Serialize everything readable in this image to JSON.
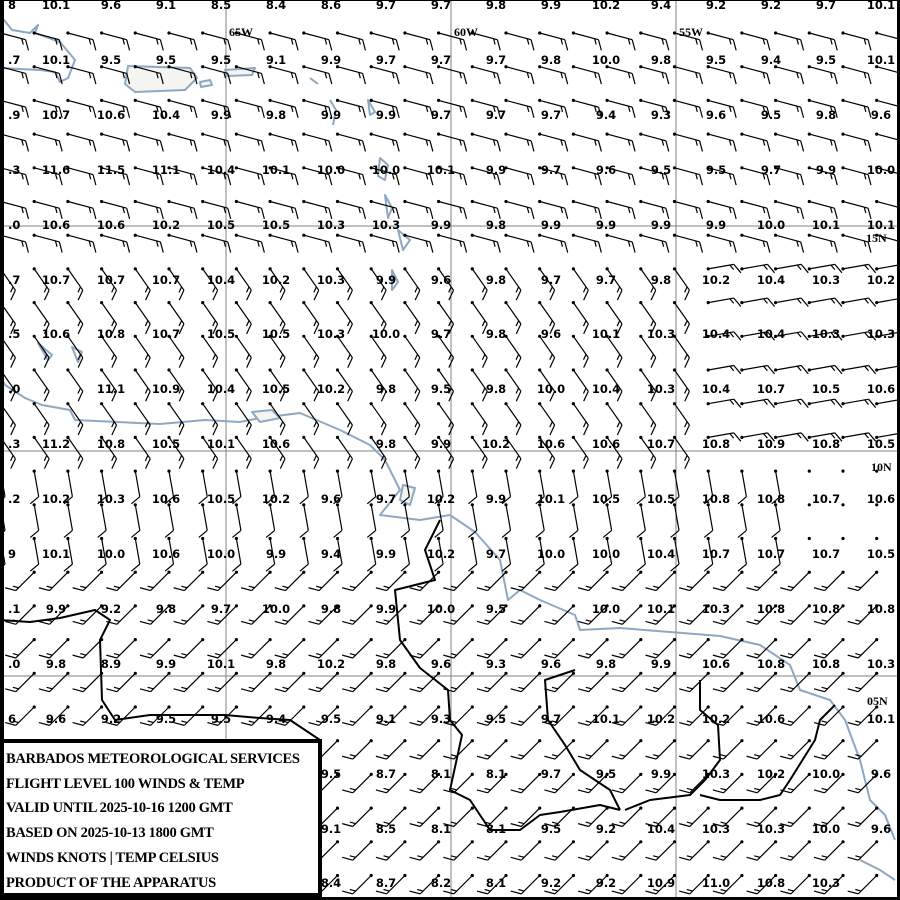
{
  "legend": {
    "lines": [
      "BARBADOS METEOROLOGICAL SERVICES",
      "FLIGHT LEVEL 100 WINDS & TEMP",
      "VALID UNTIL 2025-10-16 1200 GMT",
      "BASED ON 2025-10-13 1800 GMT",
      "WINDS KNOTS | TEMP CELSIUS",
      "PRODUCT OF THE APPARATUS"
    ]
  },
  "longitude_labels": [
    "65W",
    "60W",
    "55W"
  ],
  "latitude_labels": [
    "15N",
    "10N",
    "05N"
  ],
  "colors": {
    "grid_label": "#ff0000",
    "gridline": "#808080",
    "coastline": "#8fa7c0",
    "border": "#000000",
    "wind_barb": "#000000"
  },
  "temperatures_celsius": [
    [
      "10.1",
      "9.6",
      "9.1",
      "8.5",
      "8.4",
      "8.6",
      "9.7",
      "9.7",
      "9.8",
      "9.9",
      "10.2",
      "9.4",
      "9.2",
      "9.2",
      "9.7",
      "10.1"
    ],
    [
      "10.1",
      "9.5",
      "9.5",
      "9.5",
      "9.1",
      "9.9",
      "9.7",
      "9.7",
      "9.7",
      "9.8",
      "10.0",
      "9.8",
      "9.5",
      "9.4",
      "9.5",
      "10.1"
    ],
    [
      "10.7",
      "10.6",
      "10.4",
      "9.9",
      "9.8",
      "9.9",
      "9.9",
      "9.7",
      "9.7",
      "9.7",
      "9.4",
      "9.3",
      "9.6",
      "9.5",
      "9.8",
      "9.6"
    ],
    [
      "11.6",
      "11.5",
      "11.1",
      "10.4",
      "10.1",
      "10.0",
      "10.0",
      "10.1",
      "9.9",
      "9.7",
      "9.6",
      "9.5",
      "9.5",
      "9.7",
      "9.9",
      "10.0"
    ],
    [
      "10.6",
      "10.6",
      "10.2",
      "10.5",
      "10.5",
      "10.3",
      "10.3",
      "9.9",
      "9.8",
      "9.9",
      "9.9",
      "9.9",
      "9.9",
      "10.0",
      "10.1",
      "10.1"
    ],
    [
      "10.7",
      "10.7",
      "10.7",
      "10.4",
      "10.2",
      "10.3",
      "9.9",
      "9.6",
      "9.8",
      "9.7",
      "9.7",
      "9.8",
      "10.2",
      "10.4",
      "10.3",
      "10.2"
    ],
    [
      "10.6",
      "10.8",
      "10.7",
      "10.5",
      "10.5",
      "10.3",
      "10.0",
      "9.7",
      "9.8",
      "9.6",
      "10.1",
      "10.3",
      "10.4",
      "10.4",
      "10.3",
      "10.3"
    ],
    [
      "",
      "11.1",
      "10.9",
      "10.4",
      "10.5",
      "10.2",
      "9.8",
      "9.5",
      "9.8",
      "10.0",
      "10.4",
      "10.3",
      "10.4",
      "10.7",
      "10.5",
      "10.6"
    ],
    [
      "11.2",
      "10.8",
      "10.5",
      "10.1",
      "10.6",
      "",
      "9.8",
      "9.9",
      "10.2",
      "10.6",
      "10.6",
      "10.7",
      "10.8",
      "10.9",
      "10.8",
      "10.5"
    ],
    [
      "10.2",
      "10.3",
      "10.6",
      "10.5",
      "10.2",
      "9.6",
      "9.7",
      "10.2",
      "9.9",
      "10.1",
      "10.5",
      "10.5",
      "10.8",
      "10.8",
      "10.7",
      "10.6"
    ],
    [
      "10.1",
      "10.0",
      "10.6",
      "10.0",
      "9.9",
      "9.4",
      "9.9",
      "10.2",
      "9.7",
      "10.0",
      "10.0",
      "10.4",
      "10.7",
      "10.7",
      "10.7",
      "10.5"
    ],
    [
      "9.9",
      "9.2",
      "9.8",
      "9.7",
      "10.0",
      "9.8",
      "9.9",
      "10.0",
      "9.5",
      "",
      "10.0",
      "10.1",
      "10.3",
      "10.8",
      "10.8",
      "10.8"
    ],
    [
      "9.8",
      "8.9",
      "9.9",
      "10.1",
      "9.8",
      "10.2",
      "9.8",
      "9.6",
      "9.3",
      "9.6",
      "9.8",
      "9.9",
      "10.6",
      "10.8",
      "10.8",
      "10.3"
    ],
    [
      "9.6",
      "9.2",
      "9.5",
      "9.5",
      "9.4",
      "9.5",
      "9.1",
      "9.3",
      "9.5",
      "9.7",
      "10.1",
      "10.2",
      "10.2",
      "10.6",
      "",
      "10.1"
    ],
    [
      "",
      "",
      "",
      "",
      "",
      "9.5",
      "8.7",
      "8.1",
      "8.1",
      "9.7",
      "9.5",
      "9.9",
      "10.3",
      "10.2",
      "10.0",
      "9.6"
    ],
    [
      "",
      "",
      "",
      "",
      "",
      "9.1",
      "8.5",
      "8.1",
      "8.1",
      "9.5",
      "9.2",
      "10.4",
      "10.3",
      "10.3",
      "10.0",
      "9.6"
    ],
    [
      "",
      "",
      "",
      "",
      "",
      "8.4",
      "8.7",
      "8.2",
      "8.1",
      "9.2",
      "9.2",
      "10.9",
      "11.0",
      "10.8",
      "10.3",
      ""
    ]
  ],
  "edge_column_partial": [
    "8",
    ".7",
    ".9",
    ".3",
    ".0",
    ".7",
    ".5",
    ".0",
    ".3",
    ".2",
    "9",
    ".1",
    ".0",
    "6",
    "",
    "",
    ""
  ],
  "wind_regimes": [
    {
      "zone": "north",
      "direction_deg": 105,
      "speed_kt": 15
    },
    {
      "zone": "central",
      "direction_deg": 145,
      "speed_kt": 15
    },
    {
      "zone": "central-east",
      "direction_deg": 80,
      "speed_kt": 15
    },
    {
      "zone": "south-central",
      "direction_deg": 170,
      "speed_kt": 10
    },
    {
      "zone": "south",
      "direction_deg": 225,
      "speed_kt": 15
    }
  ]
}
